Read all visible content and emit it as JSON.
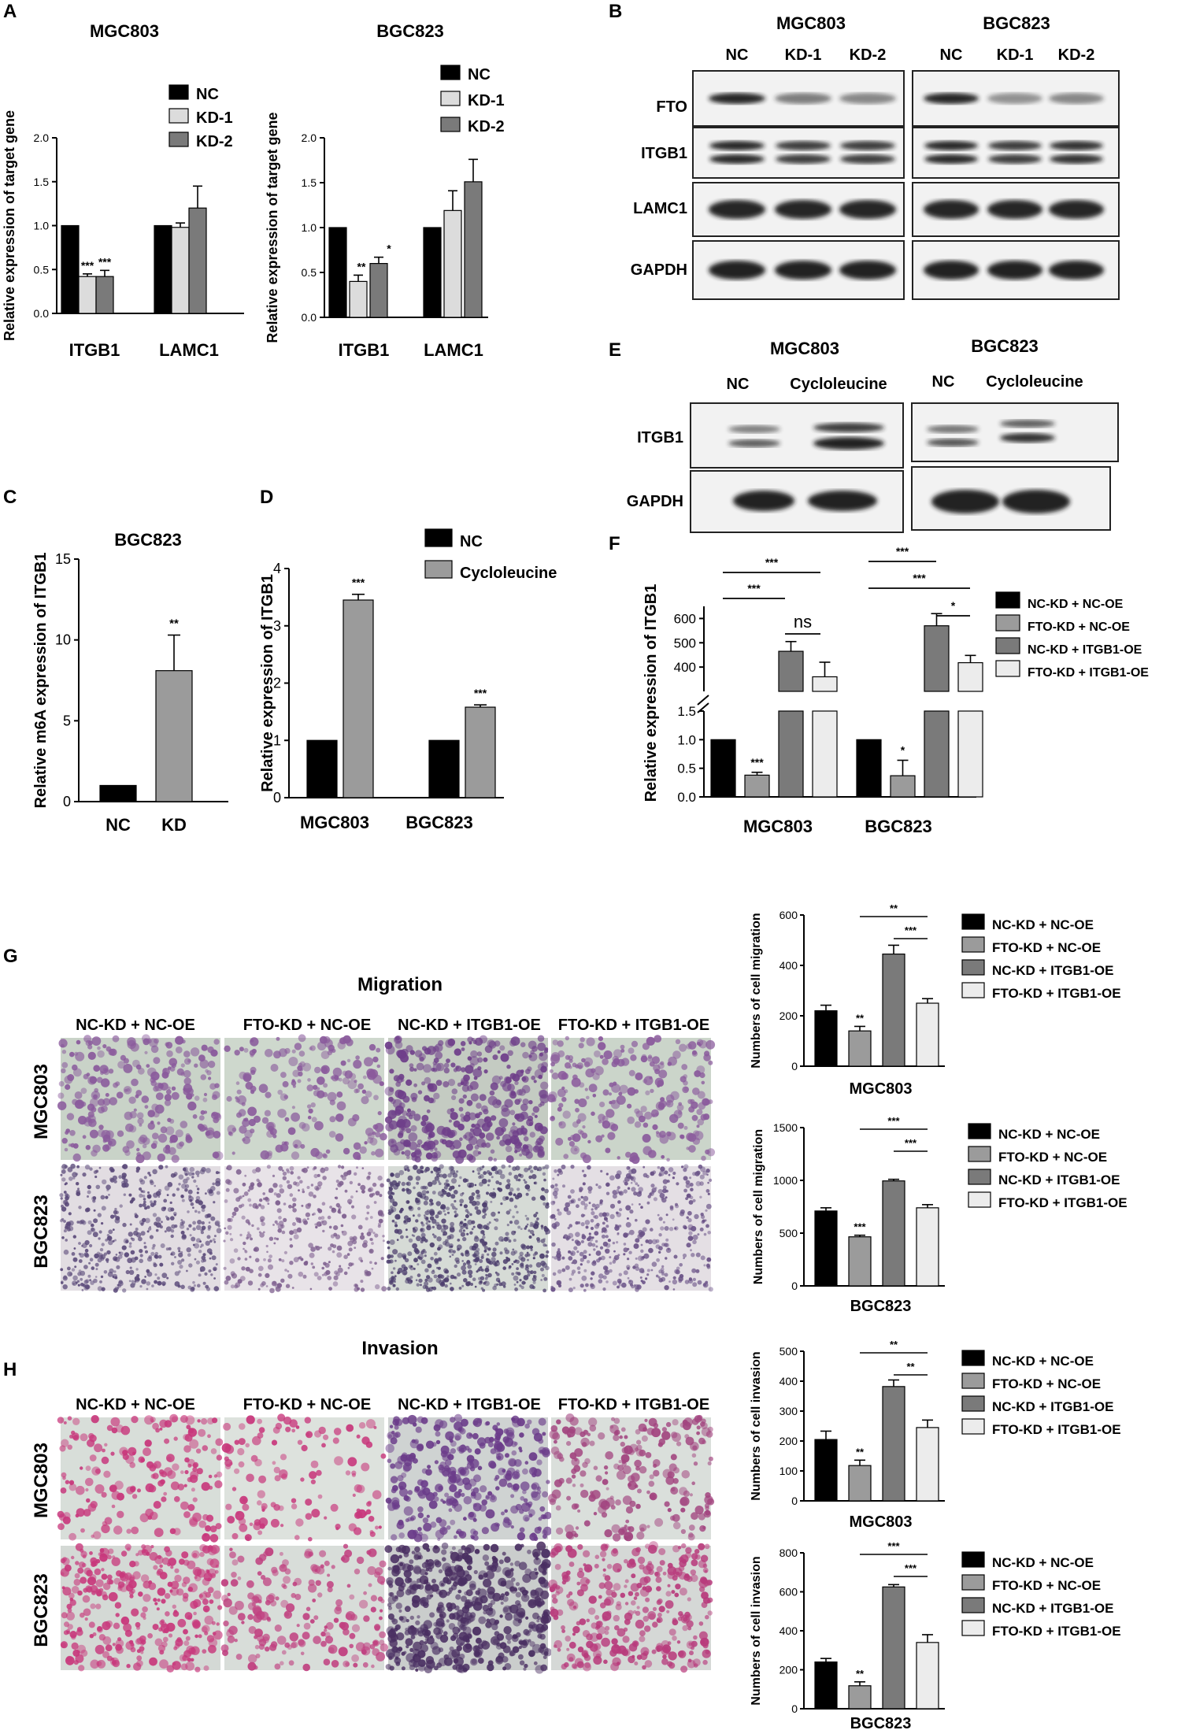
{
  "panels": {
    "A": "A",
    "B": "B",
    "C": "C",
    "D": "D",
    "E": "E",
    "F": "F",
    "G": "G",
    "H": "H"
  },
  "colors": {
    "black": "#000000",
    "light": "#dcdcdc",
    "dark": "#7a7a7a",
    "mid": "#9b9b9b",
    "pale": "#e4e4e4",
    "lightest": "#ececec",
    "violet": "#8a5a9c",
    "magenta": "#c8387c"
  },
  "legends": {
    "ncKD": [
      "NC",
      "KD-1",
      "KD-2"
    ],
    "ncCyclo": [
      "NC",
      "Cycloleucine"
    ],
    "fourGroups": [
      "NC-KD + NC-OE",
      "FTO-KD + NC-OE",
      "NC-KD + ITGB1-OE",
      "FTO-KD + ITGB1-OE"
    ],
    "fourGroupsTight": [
      "NC-KD + NC-OE",
      "FTO-KD + NC-OE",
      "NC-KD + ITGB1-OE",
      "FTO-KD + ITGB1-OE"
    ]
  },
  "blots": {
    "B": {
      "cells": [
        "MGC803",
        "BGC823"
      ],
      "lanes": [
        "NC",
        "KD-1",
        "KD-2"
      ],
      "proteins": [
        "FTO",
        "ITGB1",
        "LAMC1",
        "GAPDH"
      ]
    },
    "E": {
      "cells": [
        "MGC803",
        "BGC823"
      ],
      "lanes": [
        "NC",
        "Cycloleucine"
      ],
      "proteins": [
        "ITGB1",
        "GAPDH"
      ]
    }
  },
  "micro": {
    "G": {
      "title": "Migration",
      "headers": [
        "NC-KD + NC-OE",
        "FTO-KD + NC-OE",
        "NC-KD + ITGB1-OE",
        "FTO-KD + ITGB1-OE"
      ],
      "rows": [
        "MGC803",
        "BGC823"
      ]
    },
    "H": {
      "title": "Invasion",
      "headers": [
        "NC-KD + NC-OE",
        "FTO-KD + NC-OE",
        "NC-KD + ITGB1-OE",
        "FTO-KD + ITGB1-OE"
      ],
      "rows": [
        "MGC803",
        "BGC823"
      ]
    }
  },
  "chart_data": [
    {
      "id": "A1",
      "type": "bar",
      "title": "MGC803",
      "ylabel": "Relative expression of target gene",
      "categories": [
        "ITGB1",
        "LAMC1"
      ],
      "ylim": [
        0,
        2.0
      ],
      "yticks": [
        "0.0",
        "0.5",
        "1.0",
        "1.5",
        "2.0"
      ],
      "series": [
        {
          "name": "NC",
          "values": [
            1.0,
            1.0
          ],
          "err": [
            0,
            0
          ]
        },
        {
          "name": "KD-1",
          "values": [
            0.42,
            0.98
          ],
          "err": [
            0.03,
            0.05
          ]
        },
        {
          "name": "KD-2",
          "values": [
            0.42,
            1.2
          ],
          "err": [
            0.07,
            0.25
          ]
        }
      ],
      "annotations": [
        [
          "***",
          "",
          ""
        ],
        [
          "***",
          "",
          ""
        ]
      ]
    },
    {
      "id": "A2",
      "type": "bar",
      "title": "BGC823",
      "ylabel": "Relative expression of target gene",
      "categories": [
        "ITGB1",
        "LAMC1"
      ],
      "ylim": [
        0,
        2.0
      ],
      "yticks": [
        "0.0",
        "0.5",
        "1.0",
        "1.5",
        "2.0"
      ],
      "series": [
        {
          "name": "NC",
          "values": [
            1.0,
            1.0
          ],
          "err": [
            0,
            0
          ]
        },
        {
          "name": "KD-1",
          "values": [
            0.4,
            1.19
          ],
          "err": [
            0.07,
            0.22
          ]
        },
        {
          "name": "KD-2",
          "values": [
            0.6,
            1.51
          ],
          "err": [
            0.07,
            0.25
          ]
        }
      ],
      "annotations": [
        [
          "**",
          ""
        ],
        [
          "*",
          ""
        ]
      ]
    },
    {
      "id": "C",
      "type": "bar",
      "title": "BGC823",
      "ylabel": "Relative m6A expression of ITGB1",
      "categories": [
        "NC",
        "KD"
      ],
      "ylim": [
        0,
        15
      ],
      "yticks": [
        "0",
        "5",
        "10",
        "15"
      ],
      "values": [
        1.0,
        8.1
      ],
      "err": [
        0,
        2.2
      ],
      "annotations": [
        "",
        "**"
      ]
    },
    {
      "id": "D",
      "type": "bar",
      "ylabel": "Relative expression of ITGB1",
      "categories": [
        "MGC803",
        "BGC823"
      ],
      "ylim": [
        0,
        4
      ],
      "yticks": [
        "0",
        "1",
        "2",
        "3",
        "4"
      ],
      "series": [
        {
          "name": "NC",
          "values": [
            1.0,
            1.0
          ],
          "err": [
            0,
            0
          ]
        },
        {
          "name": "Cycloleucine",
          "values": [
            3.45,
            1.58
          ],
          "err": [
            0.1,
            0.04
          ]
        }
      ],
      "annotations": [
        "***",
        "***"
      ]
    },
    {
      "id": "F",
      "type": "bar",
      "ylabel": "Relative expression of ITGB1",
      "categories": [
        "MGC803",
        "BGC823"
      ],
      "broken_axis": true,
      "lower": {
        "ylim": [
          0,
          1.5
        ],
        "yticks": [
          "0.0",
          "0.5",
          "1.0",
          "1.5"
        ]
      },
      "upper": {
        "ylim": [
          300,
          650
        ],
        "yticks": [
          "400",
          "500",
          "600"
        ]
      },
      "series": [
        {
          "name": "NC-KD + NC-OE",
          "values": [
            1.0,
            1.0
          ],
          "err": [
            0,
            0
          ]
        },
        {
          "name": "FTO-KD + NC-OE",
          "values": [
            0.38,
            0.37
          ],
          "err": [
            0.05,
            0.27
          ]
        },
        {
          "name": "NC-KD + ITGB1-OE",
          "values": [
            465,
            570
          ],
          "err": [
            40,
            50
          ]
        },
        {
          "name": "FTO-KD + ITGB1-OE",
          "values": [
            360,
            418
          ],
          "err": [
            60,
            30
          ]
        }
      ],
      "annotations": [
        "***",
        "*"
      ],
      "brackets": [
        [
          "***",
          "***",
          "ns"
        ],
        [
          "***",
          "***",
          "*"
        ]
      ]
    },
    {
      "id": "G1",
      "type": "bar",
      "xlabel": "MGC803",
      "ylabel": "Numbers of cell migration",
      "ylim": [
        0,
        600
      ],
      "yticks": [
        "0",
        "200",
        "400",
        "600"
      ],
      "categories": [
        "NC-KD + NC-OE",
        "FTO-KD + NC-OE",
        "NC-KD + ITGB1-OE",
        "FTO-KD + ITGB1-OE"
      ],
      "values": [
        220,
        140,
        445,
        250
      ],
      "err": [
        22,
        18,
        35,
        18
      ],
      "annotations": [
        "",
        "**",
        "",
        ""
      ],
      "brackets": [
        "**",
        "***"
      ]
    },
    {
      "id": "G2",
      "type": "bar",
      "xlabel": "BGC823",
      "ylabel": "Numbers of cell migration",
      "ylim": [
        0,
        1500
      ],
      "yticks": [
        "0",
        "500",
        "1000",
        "1500"
      ],
      "categories": [
        "NC-KD + NC-OE",
        "FTO-KD + NC-OE",
        "NC-KD + ITGB1-OE",
        "FTO-KD + ITGB1-OE"
      ],
      "values": [
        710,
        465,
        995,
        740
      ],
      "err": [
        30,
        15,
        15,
        30
      ],
      "annotations": [
        "",
        "***",
        "",
        ""
      ],
      "brackets": [
        "***",
        "***"
      ]
    },
    {
      "id": "H1",
      "type": "bar",
      "xlabel": "MGC803",
      "ylabel": "Numbers of cell invasion",
      "ylim": [
        0,
        500
      ],
      "yticks": [
        "0",
        "100",
        "200",
        "300",
        "400",
        "500"
      ],
      "categories": [
        "NC-KD + NC-OE",
        "FTO-KD + NC-OE",
        "NC-KD + ITGB1-OE",
        "FTO-KD + ITGB1-OE"
      ],
      "values": [
        205,
        118,
        382,
        245
      ],
      "err": [
        28,
        18,
        22,
        25
      ],
      "annotations": [
        "",
        "**",
        "",
        ""
      ],
      "brackets": [
        "**",
        "**"
      ]
    },
    {
      "id": "H2",
      "type": "bar",
      "xlabel": "BGC823",
      "ylabel": "Numbers of cell invasion",
      "ylim": [
        0,
        800
      ],
      "yticks": [
        "0",
        "200",
        "400",
        "600",
        "800"
      ],
      "categories": [
        "NC-KD + NC-OE",
        "FTO-KD + NC-OE",
        "NC-KD + ITGB1-OE",
        "FTO-KD + ITGB1-OE"
      ],
      "values": [
        240,
        118,
        625,
        340
      ],
      "err": [
        18,
        20,
        12,
        40
      ],
      "annotations": [
        "",
        "**",
        "",
        ""
      ],
      "brackets": [
        "***",
        "***"
      ]
    }
  ]
}
